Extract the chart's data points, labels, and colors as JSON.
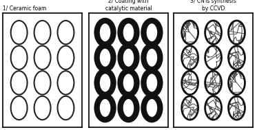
{
  "panel1_title": "1/ Ceramic foam",
  "panel2_title": "2/ Coating with\ncatalytic material",
  "panel3_title": "3/ CNTs synthesis\nby CCVD",
  "grid_rows": 4,
  "grid_cols": 3,
  "bg_color": "#ffffff",
  "border_color": "#000000",
  "thin_circle_lw": 1.5,
  "thick_circle_lw": 6.0,
  "cnt_circle_lw": 2.0,
  "title_fontsize": 5.5
}
